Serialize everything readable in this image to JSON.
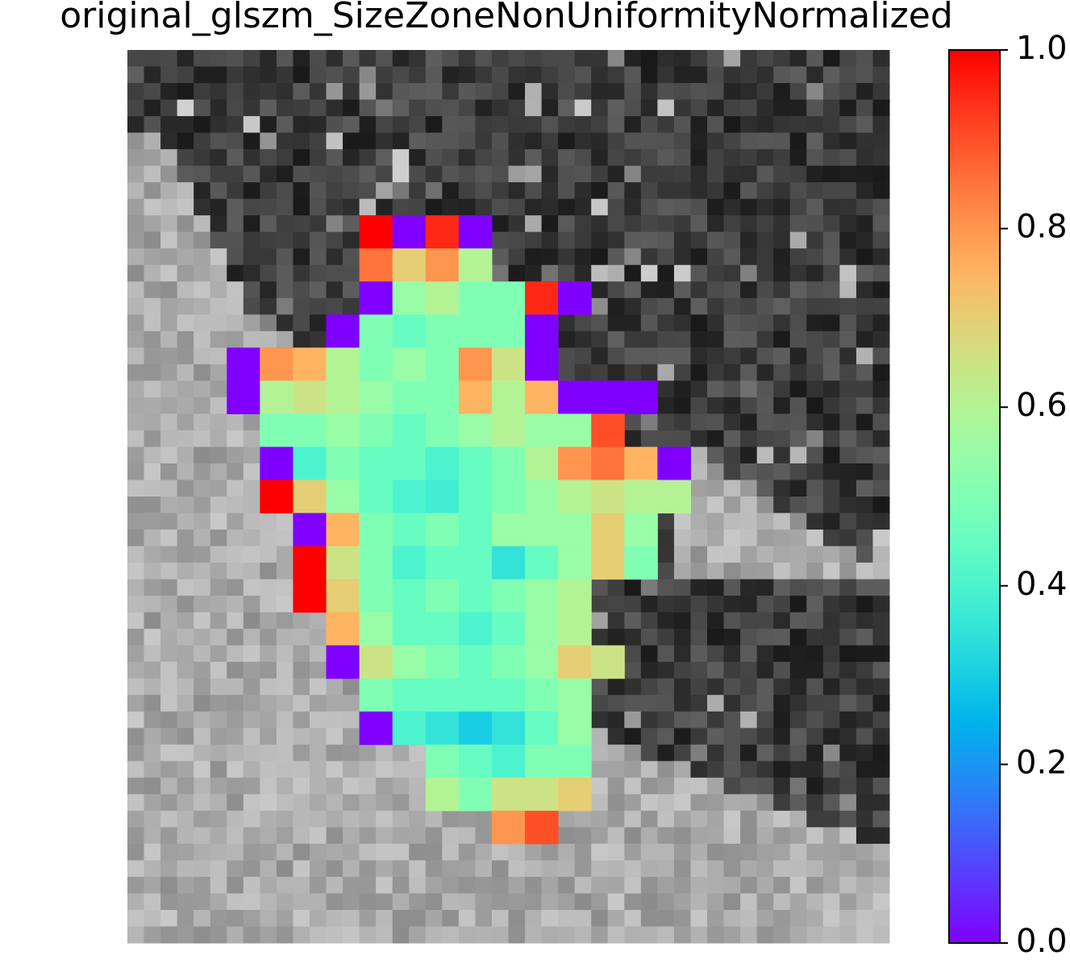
{
  "chart_data": {
    "type": "heatmap",
    "title": "original_glszm_SizeZoneNonUniformityNormalized",
    "colormap": "rainbow",
    "zlim": [
      0,
      1
    ],
    "zticks": [
      {
        "value": 0,
        "label": "0.0"
      },
      0.2,
      0.4,
      0.6,
      0.8,
      {
        "value": 1,
        "label": "1.0"
      }
    ],
    "z": [
      [
        null,
        null,
        null,
        null,
        null,
        null,
        null,
        null,
        null,
        null,
        null,
        null,
        null,
        null,
        null,
        null,
        null,
        null,
        null,
        null,
        null,
        null,
        null
      ],
      [
        null,
        null,
        null,
        null,
        null,
        null,
        null,
        null,
        null,
        null,
        null,
        null,
        null,
        null,
        null,
        null,
        null,
        null,
        null,
        null,
        null,
        null,
        null
      ],
      [
        null,
        null,
        null,
        null,
        null,
        null,
        null,
        null,
        null,
        null,
        null,
        null,
        null,
        null,
        null,
        null,
        null,
        null,
        null,
        null,
        null,
        null,
        null
      ],
      [
        null,
        null,
        null,
        null,
        null,
        null,
        null,
        null,
        null,
        null,
        null,
        null,
        null,
        null,
        null,
        null,
        null,
        null,
        null,
        null,
        null,
        null,
        null
      ],
      [
        null,
        null,
        null,
        null,
        null,
        null,
        null,
        null,
        null,
        null,
        null,
        null,
        null,
        null,
        null,
        null,
        null,
        null,
        null,
        null,
        null,
        null,
        null
      ],
      [
        null,
        null,
        null,
        null,
        null,
        null,
        null,
        1.0,
        0.0,
        0.95,
        0.0,
        null,
        null,
        null,
        null,
        null,
        null,
        null,
        null,
        null,
        null,
        null,
        null
      ],
      [
        null,
        null,
        null,
        null,
        null,
        null,
        null,
        0.85,
        0.7,
        0.8,
        0.6,
        null,
        null,
        null,
        null,
        null,
        null,
        null,
        null,
        null,
        null,
        null,
        null
      ],
      [
        null,
        null,
        null,
        null,
        null,
        null,
        null,
        0.0,
        0.55,
        0.6,
        0.5,
        0.5,
        0.95,
        0.0,
        null,
        null,
        null,
        null,
        null,
        null,
        null,
        null,
        null
      ],
      [
        null,
        null,
        null,
        null,
        null,
        null,
        0.0,
        0.5,
        0.45,
        0.5,
        0.5,
        0.5,
        0.0,
        null,
        null,
        null,
        null,
        null,
        null,
        null,
        null,
        null,
        null
      ],
      [
        null,
        null,
        null,
        0.0,
        0.8,
        0.75,
        0.6,
        0.5,
        0.55,
        0.5,
        0.8,
        0.65,
        0.0,
        null,
        null,
        null,
        null,
        null,
        null,
        null,
        null,
        null,
        null
      ],
      [
        null,
        null,
        null,
        0.0,
        0.6,
        0.65,
        0.6,
        0.55,
        0.5,
        0.5,
        0.75,
        0.6,
        0.75,
        0.0,
        0.0,
        0.0,
        null,
        null,
        null,
        null,
        null,
        null,
        null
      ],
      [
        null,
        null,
        null,
        null,
        0.5,
        0.5,
        0.55,
        0.5,
        0.45,
        0.5,
        0.55,
        0.6,
        0.55,
        0.55,
        0.9,
        null,
        null,
        null,
        null,
        null,
        null,
        null,
        null
      ],
      [
        null,
        null,
        null,
        null,
        0.0,
        0.4,
        0.5,
        0.45,
        0.45,
        0.4,
        0.45,
        0.5,
        0.6,
        0.8,
        0.85,
        0.75,
        0.0,
        null,
        null,
        null,
        null,
        null,
        null
      ],
      [
        null,
        null,
        null,
        null,
        1.0,
        0.7,
        0.55,
        0.45,
        0.4,
        0.38,
        0.45,
        0.5,
        0.55,
        0.6,
        0.65,
        0.6,
        0.6,
        null,
        null,
        null,
        null,
        null,
        null
      ],
      [
        null,
        null,
        null,
        null,
        null,
        0.0,
        0.75,
        0.5,
        0.45,
        0.5,
        0.45,
        0.55,
        0.55,
        0.55,
        0.7,
        0.55,
        null,
        null,
        null,
        null,
        null,
        null,
        null
      ],
      [
        null,
        null,
        null,
        null,
        null,
        1.0,
        0.65,
        0.5,
        0.4,
        0.45,
        0.45,
        0.35,
        0.45,
        0.55,
        0.7,
        0.5,
        null,
        null,
        null,
        null,
        null,
        null,
        null
      ],
      [
        null,
        null,
        null,
        null,
        null,
        1.0,
        0.7,
        0.5,
        0.45,
        0.5,
        0.45,
        0.5,
        0.55,
        0.6,
        null,
        null,
        null,
        null,
        null,
        null,
        null,
        null,
        null
      ],
      [
        null,
        null,
        null,
        null,
        null,
        null,
        0.75,
        0.55,
        0.45,
        0.45,
        0.4,
        0.45,
        0.55,
        0.6,
        null,
        null,
        null,
        null,
        null,
        null,
        null,
        null,
        null
      ],
      [
        null,
        null,
        null,
        null,
        null,
        null,
        0.0,
        0.65,
        0.55,
        0.5,
        0.45,
        0.5,
        0.55,
        0.7,
        0.65,
        null,
        null,
        null,
        null,
        null,
        null,
        null,
        null
      ],
      [
        null,
        null,
        null,
        null,
        null,
        null,
        null,
        0.5,
        0.45,
        0.45,
        0.45,
        0.45,
        0.5,
        0.55,
        null,
        null,
        null,
        null,
        null,
        null,
        null,
        null,
        null
      ],
      [
        null,
        null,
        null,
        null,
        null,
        null,
        null,
        0.0,
        0.4,
        0.35,
        0.3,
        0.35,
        0.45,
        0.55,
        null,
        null,
        null,
        null,
        null,
        null,
        null,
        null,
        null
      ],
      [
        null,
        null,
        null,
        null,
        null,
        null,
        null,
        null,
        null,
        0.5,
        0.45,
        0.4,
        0.5,
        0.5,
        null,
        null,
        null,
        null,
        null,
        null,
        null,
        null,
        null
      ],
      [
        null,
        null,
        null,
        null,
        null,
        null,
        null,
        null,
        null,
        0.6,
        0.5,
        0.65,
        0.65,
        0.7,
        null,
        null,
        null,
        null,
        null,
        null,
        null,
        null,
        null
      ],
      [
        null,
        null,
        null,
        null,
        null,
        null,
        null,
        null,
        null,
        null,
        null,
        0.8,
        0.9,
        null,
        null,
        null,
        null,
        null,
        null,
        null,
        null,
        null,
        null
      ],
      [
        null,
        null,
        null,
        null,
        null,
        null,
        null,
        null,
        null,
        null,
        null,
        null,
        null,
        null,
        null,
        null,
        null,
        null,
        null,
        null,
        null,
        null,
        null
      ],
      [
        null,
        null,
        null,
        null,
        null,
        null,
        null,
        null,
        null,
        null,
        null,
        null,
        null,
        null,
        null,
        null,
        null,
        null,
        null,
        null,
        null,
        null,
        null
      ],
      [
        null,
        null,
        null,
        null,
        null,
        null,
        null,
        null,
        null,
        null,
        null,
        null,
        null,
        null,
        null,
        null,
        null,
        null,
        null,
        null,
        null,
        null,
        null
      ]
    ]
  }
}
